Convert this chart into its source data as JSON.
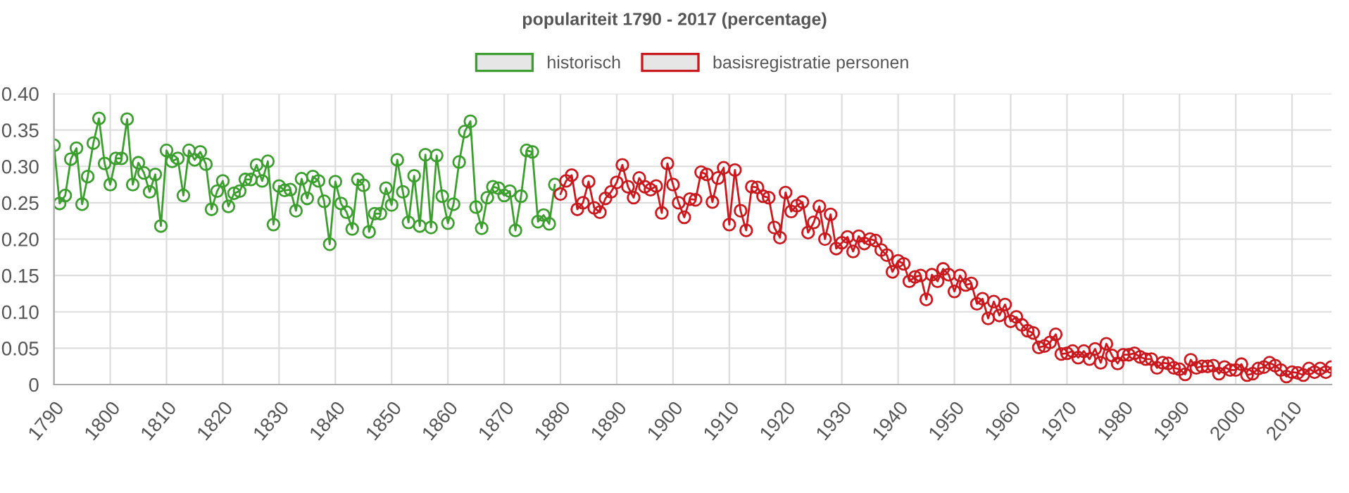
{
  "chart_data": {
    "type": "line",
    "title": "populariteit 1790 - 2017 (percentage)",
    "xlim": [
      1790,
      2017
    ],
    "xticks": [
      1790,
      1800,
      1810,
      1820,
      1830,
      1840,
      1850,
      1860,
      1870,
      1880,
      1890,
      1900,
      1910,
      1920,
      1930,
      1940,
      1950,
      1960,
      1970,
      1980,
      1990,
      2000,
      2010
    ],
    "ylim": [
      0,
      0.4
    ],
    "yticks": [
      {
        "value": 0,
        "label": "0"
      },
      {
        "value": 0.05,
        "label": "0.05"
      },
      {
        "value": 0.1,
        "label": "0.10"
      },
      {
        "value": 0.15,
        "label": "0.15"
      },
      {
        "value": 0.2,
        "label": "0.20"
      },
      {
        "value": 0.25,
        "label": "0.25"
      },
      {
        "value": 0.3,
        "label": "0.30"
      },
      {
        "value": 0.35,
        "label": "0.35"
      },
      {
        "value": 0.4,
        "label": "0.40"
      }
    ],
    "grid": true,
    "legend": "top",
    "marker": "circle",
    "line_style": "solid",
    "series": [
      {
        "name": "historisch",
        "color": "#3c9e2e",
        "x": [
          1790,
          1791,
          1792,
          1793,
          1794,
          1795,
          1796,
          1797,
          1798,
          1799,
          1800,
          1801,
          1802,
          1803,
          1804,
          1805,
          1806,
          1807,
          1808,
          1809,
          1810,
          1811,
          1812,
          1813,
          1814,
          1815,
          1816,
          1817,
          1818,
          1819,
          1820,
          1821,
          1822,
          1823,
          1824,
          1825,
          1826,
          1827,
          1828,
          1829,
          1830,
          1831,
          1832,
          1833,
          1834,
          1835,
          1836,
          1837,
          1838,
          1839,
          1840,
          1841,
          1842,
          1843,
          1844,
          1845,
          1846,
          1847,
          1848,
          1849,
          1850,
          1851,
          1852,
          1853,
          1854,
          1855,
          1856,
          1857,
          1858,
          1859,
          1860,
          1861,
          1862,
          1863,
          1864,
          1865,
          1866,
          1867,
          1868,
          1869,
          1870,
          1871,
          1872,
          1873,
          1874,
          1875,
          1876,
          1877,
          1878,
          1879
        ],
        "values": [
          0.329,
          0.249,
          0.26,
          0.31,
          0.325,
          0.248,
          0.286,
          0.332,
          0.366,
          0.304,
          0.275,
          0.311,
          0.311,
          0.365,
          0.275,
          0.305,
          0.291,
          0.265,
          0.289,
          0.218,
          0.322,
          0.307,
          0.311,
          0.26,
          0.322,
          0.309,
          0.32,
          0.303,
          0.241,
          0.266,
          0.28,
          0.245,
          0.263,
          0.266,
          0.282,
          0.282,
          0.302,
          0.28,
          0.307,
          0.22,
          0.273,
          0.267,
          0.268,
          0.239,
          0.283,
          0.256,
          0.286,
          0.28,
          0.252,
          0.193,
          0.279,
          0.249,
          0.237,
          0.214,
          0.282,
          0.274,
          0.21,
          0.235,
          0.235,
          0.27,
          0.247,
          0.309,
          0.265,
          0.223,
          0.287,
          0.218,
          0.316,
          0.216,
          0.315,
          0.259,
          0.222,
          0.248,
          0.306,
          0.348,
          0.362,
          0.244,
          0.215,
          0.257,
          0.272,
          0.27,
          0.26,
          0.266,
          0.212,
          0.259,
          0.322,
          0.32,
          0.224,
          0.233,
          0.221,
          0.275
        ]
      },
      {
        "name": "basisregistratie personen",
        "color": "#c8191e",
        "x": [
          1880,
          1881,
          1882,
          1883,
          1884,
          1885,
          1886,
          1887,
          1888,
          1889,
          1890,
          1891,
          1892,
          1893,
          1894,
          1895,
          1896,
          1897,
          1898,
          1899,
          1900,
          1901,
          1902,
          1903,
          1904,
          1905,
          1906,
          1907,
          1908,
          1909,
          1910,
          1911,
          1912,
          1913,
          1914,
          1915,
          1916,
          1917,
          1918,
          1919,
          1920,
          1921,
          1922,
          1923,
          1924,
          1925,
          1926,
          1927,
          1928,
          1929,
          1930,
          1931,
          1932,
          1933,
          1934,
          1935,
          1936,
          1937,
          1938,
          1939,
          1940,
          1941,
          1942,
          1943,
          1944,
          1945,
          1946,
          1947,
          1948,
          1949,
          1950,
          1951,
          1952,
          1953,
          1954,
          1955,
          1956,
          1957,
          1958,
          1959,
          1960,
          1961,
          1962,
          1963,
          1964,
          1965,
          1966,
          1967,
          1968,
          1969,
          1970,
          1971,
          1972,
          1973,
          1974,
          1975,
          1976,
          1977,
          1978,
          1979,
          1980,
          1981,
          1982,
          1983,
          1984,
          1985,
          1986,
          1987,
          1988,
          1989,
          1990,
          1991,
          1992,
          1993,
          1994,
          1995,
          1996,
          1997,
          1998,
          1999,
          2000,
          2001,
          2002,
          2003,
          2004,
          2005,
          2006,
          2007,
          2008,
          2009,
          2010,
          2011,
          2012,
          2013,
          2014,
          2015,
          2016,
          2017
        ],
        "values": [
          0.262,
          0.28,
          0.288,
          0.241,
          0.25,
          0.279,
          0.243,
          0.237,
          0.256,
          0.265,
          0.278,
          0.302,
          0.272,
          0.257,
          0.284,
          0.272,
          0.268,
          0.273,
          0.236,
          0.304,
          0.275,
          0.25,
          0.23,
          0.255,
          0.254,
          0.292,
          0.289,
          0.251,
          0.284,
          0.298,
          0.22,
          0.295,
          0.239,
          0.212,
          0.272,
          0.271,
          0.259,
          0.257,
          0.216,
          0.202,
          0.264,
          0.238,
          0.246,
          0.251,
          0.209,
          0.223,
          0.245,
          0.2,
          0.234,
          0.187,
          0.195,
          0.203,
          0.183,
          0.204,
          0.194,
          0.2,
          0.198,
          0.185,
          0.178,
          0.155,
          0.17,
          0.166,
          0.142,
          0.148,
          0.15,
          0.117,
          0.151,
          0.142,
          0.159,
          0.151,
          0.128,
          0.15,
          0.137,
          0.139,
          0.111,
          0.118,
          0.091,
          0.114,
          0.095,
          0.11,
          0.087,
          0.093,
          0.082,
          0.074,
          0.071,
          0.051,
          0.053,
          0.058,
          0.069,
          0.042,
          0.043,
          0.046,
          0.037,
          0.046,
          0.035,
          0.049,
          0.03,
          0.056,
          0.04,
          0.029,
          0.041,
          0.041,
          0.043,
          0.038,
          0.035,
          0.035,
          0.023,
          0.03,
          0.029,
          0.023,
          0.021,
          0.014,
          0.034,
          0.023,
          0.025,
          0.025,
          0.026,
          0.015,
          0.024,
          0.02,
          0.02,
          0.028,
          0.013,
          0.015,
          0.022,
          0.024,
          0.03,
          0.026,
          0.02,
          0.011,
          0.017,
          0.016,
          0.013,
          0.022,
          0.017,
          0.022,
          0.017,
          0.024
        ]
      }
    ]
  }
}
